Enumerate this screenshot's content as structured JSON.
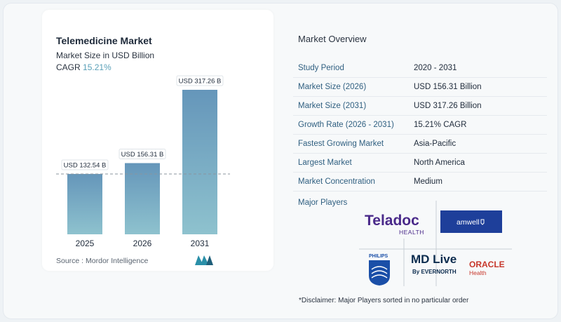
{
  "chart_data": {
    "type": "bar",
    "title": "Telemedicine Market",
    "subtitle": "Market Size in USD Billion",
    "cagr_label": "CAGR",
    "cagr_value": "15.21%",
    "categories": [
      "2025",
      "2026",
      "2031"
    ],
    "values": [
      132.54,
      156.31,
      317.26
    ],
    "data_labels": [
      "USD 132.54 B",
      "USD 156.31 B",
      "USD 317.26 B"
    ],
    "ylim": [
      0,
      317.26
    ],
    "reference_line": "dashed line at 2025 level",
    "bar_colors": [
      "#6d9fbf",
      "#6d9fbf",
      "#6d9fbf"
    ],
    "grid": false
  },
  "source": "Source :  Mordor Intelligence",
  "overview": {
    "title": "Market Overview",
    "rows": [
      {
        "key": "Study Period",
        "value": "2020 - 2031"
      },
      {
        "key": "Market Size (2026)",
        "value": "USD 156.31 Billion"
      },
      {
        "key": "Market Size (2031)",
        "value": "USD 317.26 Billion"
      },
      {
        "key": "Growth Rate (2026 - 2031)",
        "value": "15.21% CAGR"
      },
      {
        "key": "Fastest Growing Market",
        "value": "Asia-Pacific"
      },
      {
        "key": "Largest Market",
        "value": "North America"
      },
      {
        "key": "Market Concentration",
        "value": "Medium"
      }
    ]
  },
  "players": {
    "title": "Major Players",
    "teladoc": {
      "name": "Teladoc",
      "sub": "HEALTH"
    },
    "amwell": "amwell",
    "philips": "PHILIPS",
    "mdlive": {
      "name": "MD Live",
      "sub": "By EVERNORTH"
    },
    "oracle": {
      "name": "ORACLE",
      "sub": "Health"
    }
  },
  "disclaimer": "*Disclaimer: Major Players sorted in no particular order",
  "colors": {
    "accent": "#5aa0b8",
    "bar": "#6d9fbf",
    "key_text": "#2f5f80"
  }
}
